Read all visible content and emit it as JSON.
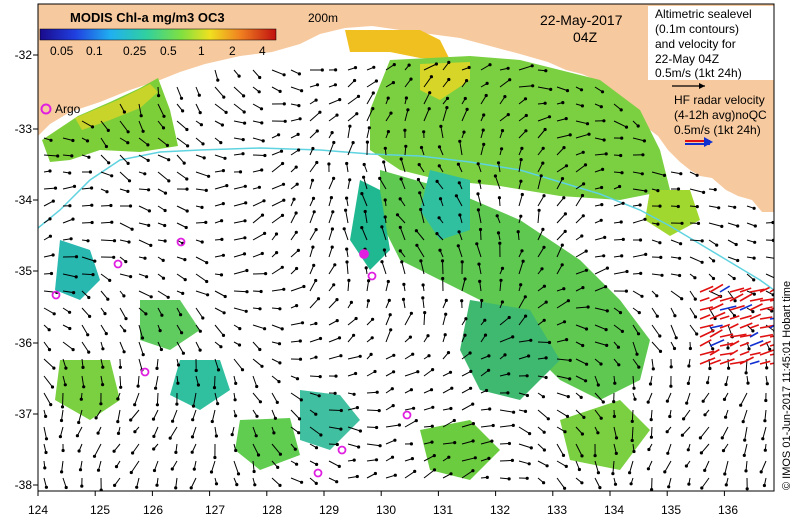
{
  "colorbar": {
    "title": "MODIS Chl-a mg/m3 OC3",
    "ticks": [
      "0.05",
      "0.1",
      "0.25",
      "0.5",
      "1",
      "2",
      "4"
    ]
  },
  "bathy_label": "200m",
  "date": "22-May-2017",
  "time": "04Z",
  "altimetry_legend": {
    "lines": [
      "Altimetric sealevel",
      "(0.1m contours)",
      "and velocity for",
      "22-May 04Z"
    ],
    "scale_label": "0.5m/s (1kt 24h)"
  },
  "hf_legend": {
    "lines": [
      "HF radar velocity",
      "(4-12h avg)noQC"
    ],
    "scale_label": "0.5m/s (1kt 24h)"
  },
  "argo_label": "Argo",
  "credit": "© IMOS 01-Jun-2017 11:45:01 Hobart time",
  "axes": {
    "y_ticks": [
      "-32",
      "-33",
      "-34",
      "-35",
      "-36",
      "-37",
      "-38"
    ],
    "x_ticks": [
      "124",
      "125",
      "126",
      "127",
      "128",
      "129",
      "130",
      "131",
      "132",
      "133",
      "134",
      "135",
      "136"
    ]
  },
  "colors": {
    "land": "#f7c99e",
    "ocean": "#ffffff",
    "bathy_contour": "#5fd3e0",
    "argo": "#e020e0",
    "hf_arrow_red": "#e01010",
    "hf_arrow_blue": "#1030d0",
    "vector": "#000000"
  }
}
